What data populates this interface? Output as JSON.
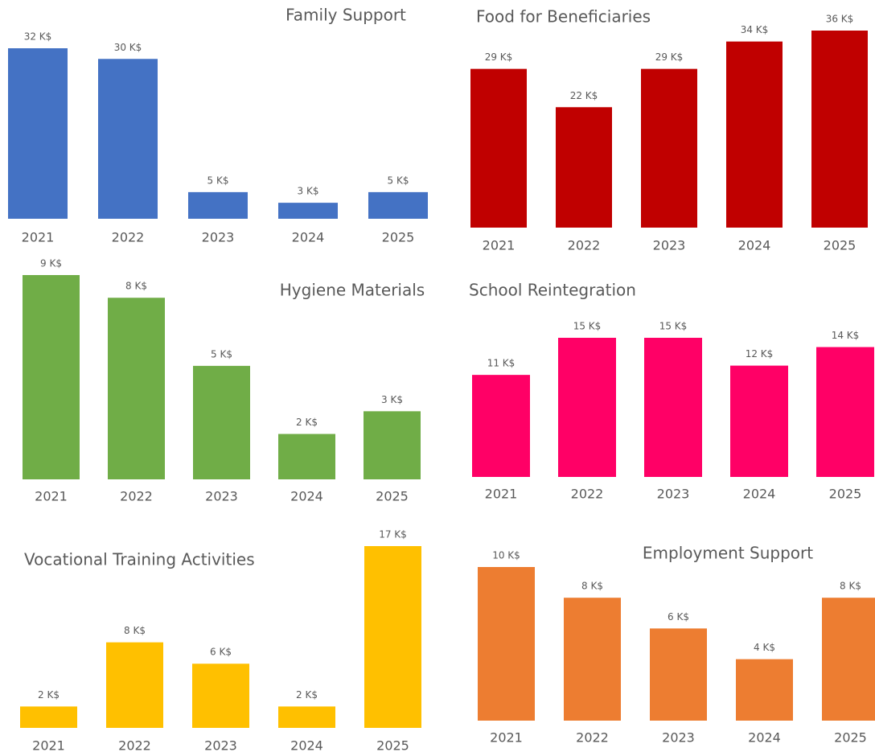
{
  "chart_data": [
    {
      "type": "bar",
      "title": "Family Support",
      "color": "#4472c4",
      "categories": [
        "2021",
        "2022",
        "2023",
        "2024",
        "2025"
      ],
      "values": [
        32,
        30,
        5,
        3,
        5
      ],
      "value_labels": [
        "32 K$",
        "30 K$",
        "5 K$",
        "3 K$",
        "5 K$"
      ]
    },
    {
      "type": "bar",
      "title": "Food for Beneficiaries",
      "color": "#c00000",
      "categories": [
        "2021",
        "2022",
        "2023",
        "2024",
        "2025"
      ],
      "values": [
        29,
        22,
        29,
        34,
        36
      ],
      "value_labels": [
        "29 K$",
        "22 K$",
        "29 K$",
        "34 K$",
        "36 K$"
      ]
    },
    {
      "type": "bar",
      "title": "Hygiene Materials",
      "color": "#70ad47",
      "categories": [
        "2021",
        "2022",
        "2023",
        "2024",
        "2025"
      ],
      "values": [
        9,
        8,
        5,
        2,
        3
      ],
      "value_labels": [
        "9 K$",
        "8 K$",
        "5 K$",
        "2 K$",
        "3 K$"
      ]
    },
    {
      "type": "bar",
      "title": "School Reintegration",
      "color": "#ff0066",
      "categories": [
        "2021",
        "2022",
        "2023",
        "2024",
        "2025"
      ],
      "values": [
        11,
        15,
        15,
        12,
        14
      ],
      "value_labels": [
        "11 K$",
        "15 K$",
        "15 K$",
        "12 K$",
        "14 K$"
      ]
    },
    {
      "type": "bar",
      "title": "Vocational Training Activities",
      "color": "#ffc000",
      "categories": [
        "2021",
        "2022",
        "2023",
        "2024",
        "2025"
      ],
      "values": [
        2,
        8,
        6,
        2,
        17
      ],
      "value_labels": [
        "2 K$",
        "8 K$",
        "6 K$",
        "2 K$",
        "17 K$"
      ]
    },
    {
      "type": "bar",
      "title": "Employment Support",
      "color": "#ed7d31",
      "categories": [
        "2021",
        "2022",
        "2023",
        "2024",
        "2025"
      ],
      "values": [
        10,
        8,
        6,
        4,
        8
      ],
      "value_labels": [
        "10 K$",
        "8 K$",
        "6 K$",
        "4 K$",
        "8 K$"
      ]
    }
  ]
}
